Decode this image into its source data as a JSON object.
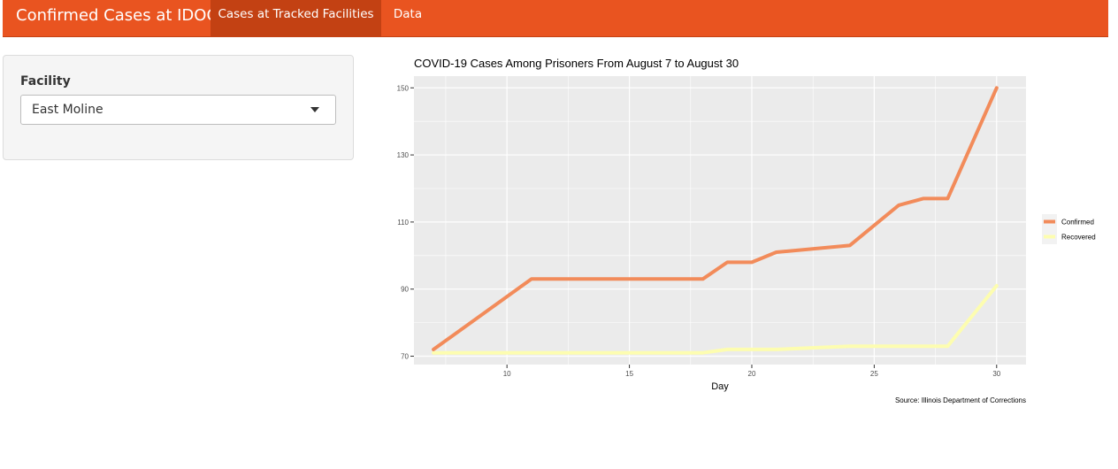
{
  "navbar": {
    "brand": "Confirmed Cases at IDOC",
    "tabs": [
      {
        "label": "Cases at Tracked Facilities",
        "active": true
      },
      {
        "label": "Data",
        "active": false
      }
    ],
    "color": "#e95420",
    "active_color": "#c34113"
  },
  "sidebar": {
    "facility_label": "Facility",
    "facility_value": "East Moline",
    "dropdown_icon": "caret-down-icon"
  },
  "chart_data": {
    "type": "line",
    "title": "COVID-19 Cases Among Prisoners From August 7 to August 30",
    "xlabel": "Day",
    "ylabel": "",
    "caption": "Source: Illinois Department of Corrections",
    "xlim": [
      6.2,
      31.2
    ],
    "ylim": [
      67.5,
      153.5
    ],
    "xticks": [
      10,
      15,
      20,
      25,
      30
    ],
    "yticks": [
      70,
      90,
      110,
      130,
      150
    ],
    "grid": true,
    "legend_position": "right",
    "series": [
      {
        "name": "Confirmed",
        "color": "#f28b5a",
        "points": [
          [
            7,
            72
          ],
          [
            11,
            93
          ],
          [
            18,
            93
          ],
          [
            19,
            98
          ],
          [
            20,
            98
          ],
          [
            21,
            101
          ],
          [
            24,
            103
          ],
          [
            26,
            115
          ],
          [
            27,
            117
          ],
          [
            28,
            117
          ],
          [
            30,
            150
          ]
        ]
      },
      {
        "name": "Recovered",
        "color": "#fdfdb0",
        "points": [
          [
            7,
            71
          ],
          [
            18,
            71
          ],
          [
            19,
            72
          ],
          [
            21,
            72
          ],
          [
            24,
            73
          ],
          [
            28,
            73
          ],
          [
            30,
            91
          ]
        ]
      }
    ]
  }
}
